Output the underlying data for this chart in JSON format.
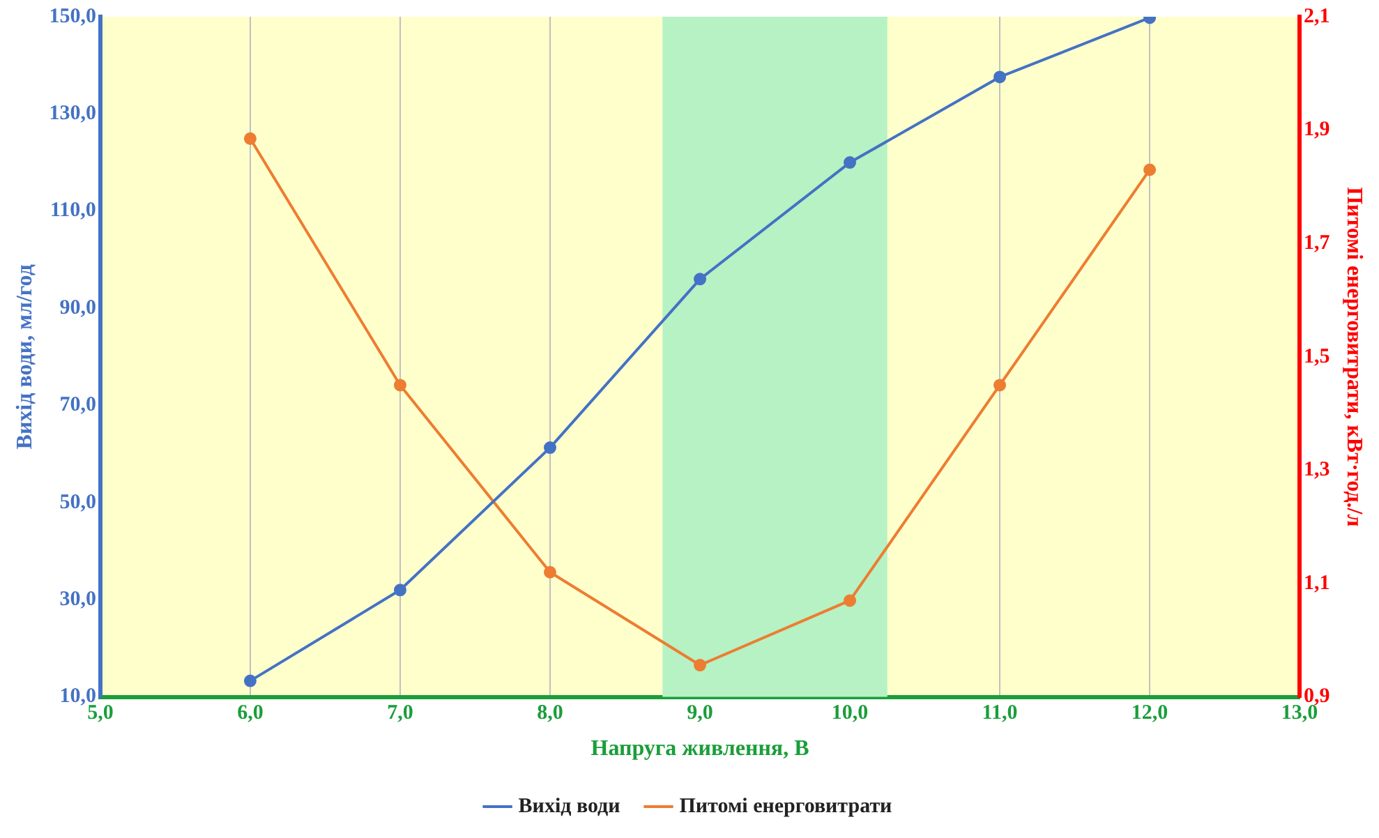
{
  "chart_data": {
    "type": "line",
    "xlabel": "Напруга живлення, В",
    "ylabel": "Вихід води, мл/год",
    "y2label": "Питомі енерговитрати, кВт·год./л",
    "x": [
      6,
      7,
      8,
      9,
      10,
      11,
      12
    ],
    "series": [
      {
        "name": "Вихід води",
        "color": "#4472c4",
        "values": [
          13.3,
          32,
          61.3,
          96,
          120,
          137.6,
          149.8
        ]
      },
      {
        "name": "Питомі енерговитрати",
        "color": "#ed7d31",
        "axis": "y2",
        "values": [
          1.885,
          1.45,
          1.12,
          0.956,
          1.07,
          1.45,
          1.83
        ]
      }
    ],
    "xlim": [
      5,
      13
    ],
    "xticks": [
      {
        "value": 5,
        "label": "5,0"
      },
      {
        "value": 6,
        "label": "6,0"
      },
      {
        "value": 7,
        "label": "7,0"
      },
      {
        "value": 8,
        "label": "8,0"
      },
      {
        "value": 9,
        "label": "9,0"
      },
      {
        "value": 10,
        "label": "10,0"
      },
      {
        "value": 11,
        "label": "11,0"
      },
      {
        "value": 12,
        "label": "12,0"
      },
      {
        "value": 13,
        "label": "13,0"
      }
    ],
    "ylim": [
      10,
      150
    ],
    "yticks": [
      {
        "value": 10,
        "label": "10,0"
      },
      {
        "value": 30,
        "label": "30,0"
      },
      {
        "value": 50,
        "label": "50,0"
      },
      {
        "value": 70,
        "label": "70,0"
      },
      {
        "value": 90,
        "label": "90,0"
      },
      {
        "value": 110,
        "label": "110,0"
      },
      {
        "value": 130,
        "label": "130,0"
      },
      {
        "value": 150,
        "label": "150,0"
      }
    ],
    "y2lim": [
      0.9,
      2.1
    ],
    "y2ticks": [
      {
        "value": 0.9,
        "label": "0,9"
      },
      {
        "value": 1.1,
        "label": "1,1"
      },
      {
        "value": 1.3,
        "label": "1,3"
      },
      {
        "value": 1.5,
        "label": "1,5"
      },
      {
        "value": 1.7,
        "label": "1,7"
      },
      {
        "value": 1.9,
        "label": "1,9"
      },
      {
        "value": 2.1,
        "label": "2,1"
      }
    ],
    "bands": [
      {
        "axis": "x",
        "from": 8.75,
        "to": 10.25,
        "color": "#b6f2c4"
      }
    ],
    "grid": "x",
    "legend": "bottom",
    "marker": "circle",
    "line_style": "solid"
  }
}
